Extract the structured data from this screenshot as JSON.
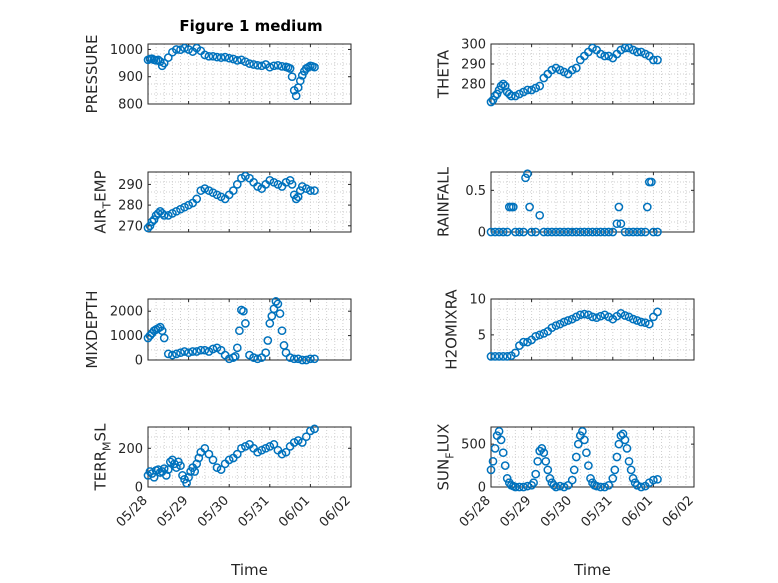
{
  "figure": {
    "title": "Figure 1 medium",
    "series_color": "#0072BD",
    "grid": "minor dotted",
    "marker": "open circle"
  },
  "chart_data": [
    {
      "type": "scatter",
      "ylabel": "PRESSURE",
      "yticks": [
        "800",
        "900",
        "1000"
      ],
      "ylim": [
        800,
        1020
      ],
      "xlim": [
        "05/28",
        "06/02"
      ],
      "x": [
        0.0,
        0.05,
        0.1,
        0.15,
        0.2,
        0.25,
        0.3,
        0.35,
        0.4,
        0.5,
        0.6,
        0.7,
        0.8,
        0.9,
        1.0,
        1.1,
        1.2,
        1.3,
        1.4,
        1.5,
        1.6,
        1.7,
        1.8,
        1.9,
        2.0,
        2.1,
        2.2,
        2.3,
        2.4,
        2.5,
        2.6,
        2.7,
        2.8,
        2.9,
        3.0,
        3.1,
        3.2,
        3.3,
        3.4,
        3.45,
        3.5,
        3.55,
        3.6,
        3.65,
        3.7,
        3.75,
        3.8,
        3.85,
        3.9,
        3.95,
        4.0,
        4.05,
        4.1
      ],
      "y": [
        962,
        965,
        966,
        962,
        960,
        962,
        956,
        940,
        950,
        970,
        990,
        1000,
        999,
        1005,
        1000,
        992,
        1005,
        995,
        980,
        975,
        975,
        972,
        970,
        972,
        968,
        965,
        960,
        962,
        955,
        948,
        945,
        942,
        940,
        945,
        935,
        940,
        942,
        938,
        936,
        934,
        930,
        900,
        850,
        830,
        860,
        885,
        905,
        920,
        930,
        935,
        940,
        938,
        935
      ]
    },
    {
      "type": "scatter",
      "ylabel": "THETA",
      "yticks": [
        "280",
        "290",
        "300"
      ],
      "ylim": [
        270,
        300
      ],
      "xlim": [
        "05/28",
        "06/02"
      ],
      "x": [
        0.0,
        0.05,
        0.1,
        0.15,
        0.2,
        0.25,
        0.3,
        0.35,
        0.4,
        0.45,
        0.5,
        0.6,
        0.7,
        0.8,
        0.9,
        1.0,
        1.1,
        1.2,
        1.3,
        1.4,
        1.5,
        1.6,
        1.7,
        1.8,
        1.9,
        2.0,
        2.1,
        2.2,
        2.3,
        2.4,
        2.5,
        2.6,
        2.7,
        2.8,
        2.9,
        3.0,
        3.1,
        3.2,
        3.3,
        3.4,
        3.5,
        3.6,
        3.7,
        3.8,
        3.9,
        4.0,
        4.1
      ],
      "y": [
        271,
        272,
        274,
        275,
        277,
        279,
        280,
        279,
        276,
        275,
        274,
        274,
        275,
        276,
        277,
        277,
        278,
        279,
        283,
        285,
        287,
        288,
        287,
        286,
        285,
        287,
        288,
        292,
        294,
        296,
        298,
        297,
        295,
        294,
        294,
        293,
        295,
        297,
        298,
        298,
        297,
        296,
        296,
        295,
        294,
        292,
        292
      ]
    },
    {
      "type": "scatter",
      "ylabel": "AIR_TEMP",
      "yticks": [
        "270",
        "280",
        "290"
      ],
      "ylim": [
        267,
        296
      ],
      "xlim": [
        "05/28",
        "06/02"
      ],
      "x": [
        0.0,
        0.05,
        0.1,
        0.15,
        0.2,
        0.25,
        0.3,
        0.35,
        0.4,
        0.5,
        0.6,
        0.7,
        0.8,
        0.9,
        1.0,
        1.1,
        1.2,
        1.3,
        1.4,
        1.5,
        1.6,
        1.7,
        1.8,
        1.9,
        2.0,
        2.1,
        2.2,
        2.3,
        2.4,
        2.5,
        2.6,
        2.7,
        2.8,
        2.9,
        3.0,
        3.1,
        3.2,
        3.3,
        3.4,
        3.5,
        3.55,
        3.6,
        3.65,
        3.7,
        3.75,
        3.8,
        3.9,
        4.0,
        4.1
      ],
      "y": [
        269,
        270,
        272,
        273,
        275,
        276,
        277,
        276,
        275,
        275,
        276,
        277,
        278,
        279,
        280,
        281,
        283,
        287,
        288,
        287,
        286,
        285,
        284,
        283,
        285,
        287,
        290,
        293,
        294,
        293,
        291,
        289,
        288,
        290,
        292,
        291,
        290,
        289,
        291,
        292,
        290,
        285,
        283,
        284,
        287,
        289,
        288,
        287,
        287
      ]
    },
    {
      "type": "scatter",
      "ylabel": "RAINFALL",
      "yticks": [
        "0",
        "0.5"
      ],
      "ylim": [
        0,
        0.72
      ],
      "xlim": [
        "05/28",
        "06/02"
      ],
      "x": [
        0.0,
        0.1,
        0.2,
        0.3,
        0.4,
        0.45,
        0.5,
        0.55,
        0.6,
        0.7,
        0.8,
        0.85,
        0.9,
        0.95,
        1.0,
        1.1,
        1.2,
        1.3,
        1.4,
        1.5,
        1.6,
        1.7,
        1.8,
        1.9,
        2.0,
        2.1,
        2.2,
        2.3,
        2.4,
        2.5,
        2.6,
        2.7,
        2.8,
        2.9,
        3.0,
        3.1,
        3.15,
        3.2,
        3.3,
        3.4,
        3.5,
        3.6,
        3.7,
        3.8,
        3.85,
        3.9,
        3.95,
        4.0,
        4.1
      ],
      "y": [
        0,
        0,
        0,
        0,
        0,
        0.3,
        0.3,
        0.3,
        0,
        0,
        0,
        0.65,
        0.7,
        0.3,
        0,
        0,
        0.2,
        0,
        0,
        0,
        0,
        0,
        0,
        0,
        0,
        0,
        0,
        0,
        0,
        0,
        0,
        0,
        0,
        0,
        0,
        0.1,
        0.3,
        0.1,
        0,
        0,
        0,
        0,
        0,
        0,
        0.3,
        0.6,
        0.6,
        0,
        0
      ]
    },
    {
      "type": "scatter",
      "ylabel": "MIXDEPTH",
      "yticks": [
        "0",
        "1000",
        "2000"
      ],
      "ylim": [
        0,
        2500
      ],
      "xlim": [
        "05/28",
        "06/02"
      ],
      "x": [
        0.0,
        0.05,
        0.1,
        0.15,
        0.2,
        0.25,
        0.3,
        0.35,
        0.4,
        0.5,
        0.6,
        0.7,
        0.8,
        0.9,
        1.0,
        1.1,
        1.2,
        1.3,
        1.4,
        1.5,
        1.6,
        1.7,
        1.8,
        1.9,
        2.0,
        2.1,
        2.15,
        2.2,
        2.25,
        2.3,
        2.35,
        2.4,
        2.5,
        2.6,
        2.7,
        2.8,
        2.9,
        2.95,
        3.0,
        3.05,
        3.1,
        3.15,
        3.2,
        3.25,
        3.3,
        3.35,
        3.4,
        3.5,
        3.6,
        3.7,
        3.8,
        3.9,
        4.0,
        4.1
      ],
      "y": [
        900,
        1000,
        1100,
        1200,
        1250,
        1300,
        1350,
        1200,
        900,
        250,
        200,
        250,
        300,
        350,
        300,
        350,
        350,
        400,
        400,
        350,
        450,
        500,
        400,
        200,
        50,
        100,
        150,
        500,
        1200,
        2050,
        2000,
        1500,
        200,
        100,
        50,
        100,
        300,
        800,
        1500,
        1800,
        2100,
        2400,
        2300,
        1900,
        1200,
        600,
        300,
        100,
        50,
        50,
        0,
        0,
        50,
        50
      ]
    },
    {
      "type": "scatter",
      "ylabel": "H2OMIXRA",
      "yticks": [
        "5",
        "10"
      ],
      "ylim": [
        1.5,
        10
      ],
      "xlim": [
        "05/28",
        "06/02"
      ],
      "x": [
        0.0,
        0.1,
        0.2,
        0.3,
        0.4,
        0.5,
        0.6,
        0.7,
        0.8,
        0.9,
        1.0,
        1.1,
        1.2,
        1.3,
        1.4,
        1.5,
        1.6,
        1.7,
        1.8,
        1.9,
        2.0,
        2.1,
        2.2,
        2.3,
        2.4,
        2.5,
        2.6,
        2.7,
        2.8,
        2.9,
        3.0,
        3.1,
        3.2,
        3.3,
        3.4,
        3.5,
        3.6,
        3.7,
        3.8,
        3.9,
        4.0,
        4.1
      ],
      "y": [
        2,
        2,
        2,
        2,
        2,
        2.1,
        2.5,
        3.5,
        4,
        4,
        4.3,
        4.8,
        5,
        5.2,
        5.5,
        6,
        6.3,
        6.5,
        6.8,
        7,
        7.2,
        7.5,
        7.8,
        7.9,
        7.8,
        7.5,
        7.4,
        7.6,
        7.8,
        7.5,
        7.2,
        7.6,
        8,
        7.7,
        7.5,
        7.2,
        7,
        6.8,
        6.7,
        6.5,
        7.5,
        8.2
      ]
    },
    {
      "type": "scatter",
      "ylabel": "TERR_MSL",
      "yticks": [
        "0",
        "200"
      ],
      "ylim": [
        0,
        310
      ],
      "xlim": [
        "05/28",
        "06/02"
      ],
      "xticks": [
        "05/28",
        "05/29",
        "05/30",
        "05/31",
        "06/01",
        "06/02"
      ],
      "xlabel": "Time",
      "x": [
        0.0,
        0.05,
        0.1,
        0.15,
        0.2,
        0.25,
        0.3,
        0.35,
        0.4,
        0.45,
        0.5,
        0.55,
        0.6,
        0.65,
        0.7,
        0.75,
        0.8,
        0.85,
        0.9,
        0.95,
        1.0,
        1.05,
        1.1,
        1.15,
        1.2,
        1.25,
        1.3,
        1.4,
        1.5,
        1.6,
        1.7,
        1.8,
        1.9,
        2.0,
        2.1,
        2.2,
        2.3,
        2.4,
        2.5,
        2.6,
        2.7,
        2.8,
        2.9,
        3.0,
        3.1,
        3.2,
        3.3,
        3.4,
        3.5,
        3.6,
        3.7,
        3.8,
        3.9,
        4.0,
        4.1
      ],
      "y": [
        60,
        80,
        70,
        50,
        85,
        90,
        75,
        80,
        95,
        60,
        90,
        130,
        140,
        120,
        100,
        130,
        110,
        60,
        40,
        20,
        50,
        80,
        100,
        80,
        120,
        150,
        180,
        200,
        170,
        140,
        100,
        90,
        120,
        140,
        150,
        170,
        200,
        210,
        220,
        200,
        180,
        190,
        200,
        210,
        220,
        190,
        170,
        180,
        210,
        230,
        240,
        230,
        260,
        290,
        300
      ]
    },
    {
      "type": "scatter",
      "ylabel": "SUN_FLUX",
      "yticks": [
        "0",
        "500"
      ],
      "ylim": [
        0,
        700
      ],
      "xlim": [
        "05/28",
        "06/02"
      ],
      "xticks": [
        "05/28",
        "05/29",
        "05/30",
        "05/31",
        "06/01",
        "06/02"
      ],
      "xlabel": "Time",
      "x": [
        0.0,
        0.05,
        0.1,
        0.15,
        0.2,
        0.25,
        0.3,
        0.35,
        0.4,
        0.45,
        0.5,
        0.55,
        0.6,
        0.7,
        0.8,
        0.9,
        1.0,
        1.05,
        1.1,
        1.15,
        1.2,
        1.25,
        1.3,
        1.35,
        1.4,
        1.45,
        1.5,
        1.55,
        1.6,
        1.7,
        1.8,
        1.9,
        2.0,
        2.05,
        2.1,
        2.15,
        2.2,
        2.25,
        2.3,
        2.35,
        2.4,
        2.45,
        2.5,
        2.55,
        2.6,
        2.7,
        2.8,
        2.9,
        3.0,
        3.05,
        3.1,
        3.15,
        3.2,
        3.25,
        3.3,
        3.35,
        3.4,
        3.45,
        3.5,
        3.55,
        3.6,
        3.7,
        3.8,
        3.9,
        4.0,
        4.1
      ],
      "y": [
        200,
        300,
        450,
        600,
        650,
        550,
        400,
        250,
        100,
        50,
        20,
        10,
        0,
        0,
        0,
        10,
        20,
        50,
        150,
        300,
        420,
        450,
        400,
        300,
        200,
        100,
        50,
        20,
        0,
        10,
        0,
        20,
        80,
        200,
        350,
        500,
        600,
        650,
        550,
        400,
        250,
        100,
        50,
        20,
        10,
        0,
        0,
        20,
        100,
        200,
        350,
        500,
        600,
        620,
        550,
        450,
        300,
        200,
        100,
        50,
        20,
        0,
        10,
        50,
        80,
        90
      ]
    }
  ]
}
